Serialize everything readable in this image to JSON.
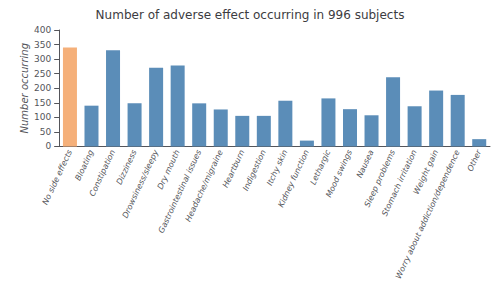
{
  "chart_data": {
    "type": "bar",
    "title": "Number of adverse effect occurring in 996 subjects",
    "ylabel": "Number occurring",
    "categories": [
      "No side effects",
      "Bloating",
      "Constipation",
      "Dizziness",
      "Drowsiness/sleepy",
      "Dry mouth",
      "Gastrointestinal issues",
      "Headache/migraine",
      "Heartburn",
      "Indigestion",
      "Itchy skin",
      "Kidney function",
      "Lethargic",
      "Mood swings",
      "Nausea",
      "Sleep problems",
      "Stomach irritation",
      "Weight gain",
      "Worry about addiction/dependence",
      "Other"
    ],
    "values": [
      340,
      140,
      330,
      148,
      270,
      278,
      148,
      127,
      105,
      105,
      157,
      20,
      165,
      128,
      107,
      238,
      138,
      192,
      177,
      25
    ],
    "colors": [
      "#f5b07a",
      "#5b8db8",
      "#5b8db8",
      "#5b8db8",
      "#5b8db8",
      "#5b8db8",
      "#5b8db8",
      "#5b8db8",
      "#5b8db8",
      "#5b8db8",
      "#5b8db8",
      "#5b8db8",
      "#5b8db8",
      "#5b8db8",
      "#5b8db8",
      "#5b8db8",
      "#5b8db8",
      "#5b8db8",
      "#5b8db8",
      "#5b8db8"
    ],
    "ylim": [
      0,
      400
    ],
    "yticks": [
      0,
      50,
      100,
      150,
      200,
      250,
      300,
      350,
      400
    ],
    "grid": false
  }
}
